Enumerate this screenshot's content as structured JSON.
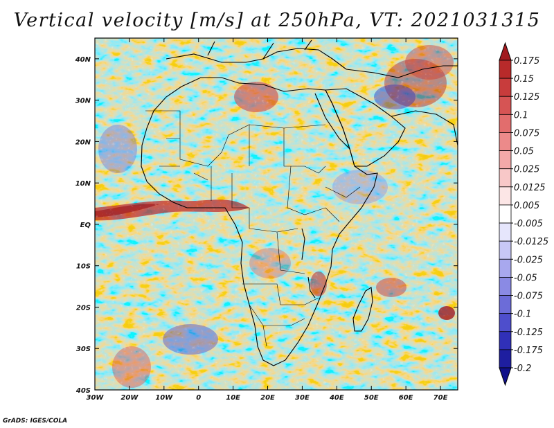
{
  "title": "Vertical velocity [m/s] at 250hPa, VT: 2021031315",
  "credit": "GrADS: IGES/COLA",
  "map": {
    "lon_range": [
      -30,
      75
    ],
    "lat_range": [
      -40,
      45
    ],
    "x_ticks": [
      "30W",
      "20W",
      "10W",
      "0",
      "10E",
      "20E",
      "30E",
      "40E",
      "50E",
      "60E",
      "70E"
    ],
    "y_ticks": [
      "40N",
      "30N",
      "20N",
      "10N",
      "EQ",
      "10S",
      "20S",
      "30S",
      "40S"
    ]
  },
  "colorbar": {
    "labels": [
      "0.175",
      "0.15",
      "0.125",
      "0.1",
      "0.075",
      "0.05",
      "0.025",
      "0.0125",
      "0.005",
      "-0.005",
      "-0.0125",
      "-0.025",
      "-0.05",
      "-0.075",
      "-0.1",
      "-0.125",
      "-0.175",
      "-0.2"
    ],
    "colors": [
      "#a11a1e",
      "#b82a2a",
      "#c83c3c",
      "#d65454",
      "#e26d6d",
      "#ec8a8a",
      "#f3a9a9",
      "#f8c8c8",
      "#fce6e6",
      "#ffffff",
      "#e6e6fc",
      "#c8c8f6",
      "#a8a8ee",
      "#8a8ae4",
      "#6c6cd8",
      "#4e4ecc",
      "#3030b8",
      "#1e1ea0",
      "#10108a"
    ]
  }
}
